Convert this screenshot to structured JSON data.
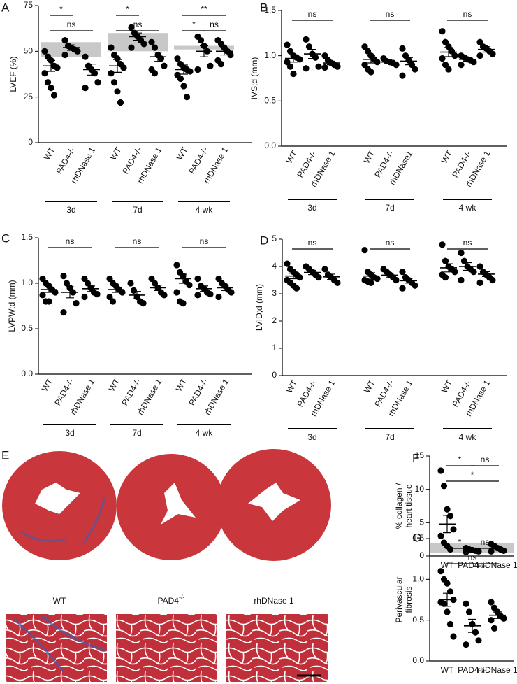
{
  "chart_data": [
    {
      "type": "dot",
      "panel": "A",
      "ylabel": "LVEF (%)",
      "ylim": [
        0,
        75
      ],
      "yticks": [
        0,
        25,
        50,
        75
      ],
      "categories": [
        "WT",
        "PAD4-/-",
        "rhDNase 1",
        "WT",
        "PAD4-/-",
        "rhDNase 1",
        "WT",
        "PAD4-/-",
        "rhDNase 1"
      ],
      "groups": [
        "3d",
        "7d",
        "4 wk"
      ],
      "points": [
        [
          50,
          47,
          45,
          42,
          41,
          38,
          33,
          30,
          26
        ],
        [
          56,
          53,
          52,
          51,
          50,
          48
        ],
        [
          47,
          42,
          40,
          38,
          33,
          30
        ],
        [
          52,
          48,
          46,
          43,
          41,
          38,
          33,
          28,
          22
        ],
        [
          63,
          60,
          58,
          56,
          54,
          52
        ],
        [
          55,
          52,
          48,
          46,
          42,
          40,
          38
        ],
        [
          46,
          43,
          41,
          40,
          39,
          37,
          35,
          31,
          25
        ],
        [
          58,
          56,
          53,
          50,
          42,
          40
        ],
        [
          56,
          54,
          52,
          50,
          48,
          45,
          43
        ]
      ],
      "means": [
        42,
        52,
        40,
        42,
        58,
        47,
        40,
        50,
        50
      ],
      "sems": [
        3,
        1.5,
        3,
        3.5,
        2,
        2.5,
        2.5,
        3,
        2
      ],
      "bands": [
        [
          47,
          55
        ],
        [
          50,
          60
        ],
        [
          51,
          53
        ]
      ],
      "comparisons": [
        {
          "label": "*",
          "pair": [
            0,
            1
          ]
        },
        {
          "label": "ns",
          "pair": [
            0,
            2
          ]
        },
        {
          "label": "*",
          "pair": [
            3,
            4
          ]
        },
        {
          "label": "ns",
          "pair": [
            3,
            5
          ]
        },
        {
          "label": "**",
          "pair": [
            6,
            8
          ]
        },
        {
          "label": "*",
          "pair": [
            6,
            7
          ]
        },
        {
          "label": "ns",
          "pair": [
            7,
            8
          ]
        }
      ]
    },
    {
      "type": "dot",
      "panel": "B",
      "ylabel": "IVS;d (mm)",
      "ylim": [
        0,
        1.5
      ],
      "yticks": [
        {
          "value": 0,
          "label": "0.0"
        },
        0.5,
        {
          "value": 1,
          "label": "1.0"
        },
        1.5
      ],
      "categories": [
        "WT",
        "PAD4-/-",
        "rhDNase 1",
        "WT",
        "PAD4-/-",
        "rhDNase1",
        "WT",
        "PAD4-/-",
        "rhDNase 1"
      ],
      "groups": [
        "3d",
        "7d",
        "4 wk"
      ],
      "points": [
        [
          1.12,
          1.05,
          1.0,
          0.98,
          0.96,
          0.93,
          0.88,
          0.8
        ],
        [
          1.18,
          1.1,
          1.02,
          0.98,
          0.88,
          0.86
        ],
        [
          1.0,
          0.95,
          0.92,
          0.9,
          0.88,
          0.87
        ],
        [
          1.1,
          1.05,
          1.0,
          0.96,
          0.93,
          0.9,
          0.85,
          0.82
        ],
        [
          0.97,
          0.94,
          0.93,
          0.92,
          0.9
        ],
        [
          1.08,
          1.0,
          0.95,
          0.9,
          0.85,
          0.78
        ],
        [
          1.27,
          1.15,
          1.1,
          1.05,
          1.0,
          0.97,
          0.9,
          0.85
        ],
        [
          1.0,
          0.98,
          0.96,
          0.95,
          0.93,
          0.9
        ],
        [
          1.15,
          1.1,
          1.08,
          1.05,
          1.02,
          1.0
        ]
      ],
      "means": [
        0.97,
        1.02,
        0.92,
        0.96,
        0.93,
        0.94,
        1.04,
        0.96,
        1.07
      ],
      "sems": [
        0.04,
        0.05,
        0.02,
        0.04,
        0.01,
        0.04,
        0.05,
        0.02,
        0.03
      ],
      "comparisons": [
        {
          "label": "ns",
          "pair": [
            0,
            2
          ]
        },
        {
          "label": "ns",
          "pair": [
            3,
            5
          ]
        },
        {
          "label": "ns",
          "pair": [
            6,
            8
          ]
        }
      ]
    },
    {
      "type": "dot",
      "panel": "C",
      "ylabel": "LVPW;d (mm)",
      "ylim": [
        0,
        1.5
      ],
      "yticks": [
        {
          "value": 0,
          "label": "0.0"
        },
        0.5,
        {
          "value": 1,
          "label": "1.0"
        },
        1.5
      ],
      "categories": [
        "WT",
        "PAD4-/-",
        "rhDNase 1",
        "WT",
        "PAD4-/-",
        "rhDNase 1",
        "WT",
        "PAD4-/-",
        "rhDNase 1"
      ],
      "groups": [
        "3d",
        "7d",
        "4 wk"
      ],
      "points": [
        [
          1.05,
          1.0,
          0.97,
          0.93,
          0.9,
          0.87,
          0.8,
          0.8
        ],
        [
          1.08,
          1.0,
          0.95,
          0.9,
          0.78,
          0.68
        ],
        [
          1.05,
          1.0,
          0.95,
          0.9,
          0.88,
          0.85
        ],
        [
          1.05,
          1.0,
          0.97,
          0.93,
          0.9,
          0.85,
          0.8
        ],
        [
          1.0,
          0.92,
          0.85,
          0.8,
          0.78
        ],
        [
          1.05,
          1.0,
          0.95,
          0.9,
          0.87
        ],
        [
          1.2,
          1.12,
          1.08,
          1.02,
          0.98,
          0.9,
          0.8,
          0.78
        ],
        [
          1.05,
          0.97,
          0.94,
          0.9,
          0.88,
          0.87
        ],
        [
          1.05,
          1.0,
          0.97,
          0.93,
          0.9,
          0.85
        ]
      ],
      "means": [
        0.93,
        0.9,
        0.94,
        0.93,
        0.87,
        0.95,
        1.05,
        0.94,
        0.95
      ],
      "sems": [
        0.03,
        0.06,
        0.03,
        0.03,
        0.04,
        0.03,
        0.05,
        0.03,
        0.03
      ],
      "comparisons": [
        {
          "label": "ns",
          "pair": [
            0,
            2
          ]
        },
        {
          "label": "ns",
          "pair": [
            3,
            5
          ]
        },
        {
          "label": "ns",
          "pair": [
            6,
            8
          ]
        }
      ]
    },
    {
      "type": "dot",
      "panel": "D",
      "ylabel": "LVID;d (mm)",
      "ylim": [
        0,
        5
      ],
      "yticks": [
        0,
        1,
        2,
        3,
        4,
        5
      ],
      "categories": [
        "WT",
        "PAD4-/-",
        "rhDNase 1",
        "WT",
        "PAD4-/-",
        "rhDNase 1",
        "WT",
        "PAD4-/-",
        "rhDNase 1"
      ],
      "groups": [
        "3d",
        "7d",
        "4 wk"
      ],
      "points": [
        [
          4.1,
          3.9,
          3.8,
          3.7,
          3.6,
          3.5,
          3.4,
          3.3,
          3.2
        ],
        [
          4.0,
          3.9,
          3.8,
          3.7,
          3.6
        ],
        [
          3.9,
          3.7,
          3.6,
          3.5,
          3.4
        ],
        [
          4.6,
          3.8,
          3.7,
          3.6,
          3.55,
          3.5,
          3.45,
          3.4
        ],
        [
          3.9,
          3.8,
          3.7,
          3.6,
          3.5
        ],
        [
          3.8,
          3.6,
          3.5,
          3.4,
          3.3,
          3.2
        ],
        [
          4.8,
          4.2,
          4.0,
          3.9,
          3.8,
          3.7,
          3.6
        ],
        [
          4.5,
          4.2,
          4.0,
          3.9,
          3.8,
          3.5
        ],
        [
          4.0,
          3.8,
          3.7,
          3.6,
          3.5,
          3.4
        ]
      ],
      "means": [
        3.65,
        3.78,
        3.62,
        3.65,
        3.68,
        3.48,
        3.95,
        4.0,
        3.72
      ],
      "sems": [
        0.1,
        0.08,
        0.1,
        0.12,
        0.07,
        0.09,
        0.15,
        0.14,
        0.09
      ],
      "comparisons": [
        {
          "label": "ns",
          "pair": [
            0,
            2
          ]
        },
        {
          "label": "ns",
          "pair": [
            3,
            5
          ]
        },
        {
          "label": "ns",
          "pair": [
            6,
            8
          ]
        }
      ]
    },
    {
      "type": "dot",
      "panel": "F",
      "ylabel": [
        "% collagen /",
        "heart tissue"
      ],
      "ylim": [
        0,
        15
      ],
      "yticks": [
        0,
        5,
        10,
        15
      ],
      "categories": [
        "WT",
        "PAD4-/-",
        "rhDNase 1"
      ],
      "points": [
        [
          12.8,
          10.5,
          7,
          6,
          4,
          3,
          2,
          1.5,
          1
        ],
        [
          1.2,
          1,
          0.9,
          0.8,
          0.7,
          0.6
        ],
        [
          1.8,
          1.5,
          1.2,
          1.0,
          0.8,
          0.7
        ]
      ],
      "means": [
        4.8,
        0.9,
        1.1
      ],
      "sems": [
        1.3,
        0.2,
        0.2
      ],
      "bands": [
        [
          0.5,
          2
        ]
      ],
      "comparisons": [
        {
          "label": "*",
          "pair": [
            0,
            1
          ]
        },
        {
          "label": "*",
          "pair": [
            0,
            2
          ]
        },
        {
          "label": "ns",
          "pair": [
            1,
            2
          ]
        }
      ]
    },
    {
      "type": "dot",
      "panel": "G",
      "ylabel": [
        "Perivascular",
        "fibrosis"
      ],
      "ylim": [
        0,
        1.5
      ],
      "yticks": [
        {
          "value": 0,
          "label": "0.0"
        },
        0.5,
        {
          "value": 1,
          "label": "1.0"
        },
        1.5
      ],
      "categories": [
        "WT",
        "PAD4-/-",
        "rhDNase 1"
      ],
      "points": [
        [
          1.1,
          1.0,
          0.95,
          0.85,
          0.75,
          0.72,
          0.7,
          0.6,
          0.45,
          0.3
        ],
        [
          0.7,
          0.6,
          0.45,
          0.35,
          0.25,
          0.2
        ],
        [
          0.72,
          0.65,
          0.6,
          0.55,
          0.52,
          0.5,
          0.4
        ]
      ],
      "means": [
        0.75,
        0.43,
        0.56
      ],
      "sems": [
        0.08,
        0.08,
        0.04
      ],
      "comparisons": [
        {
          "label": "*",
          "pair": [
            0,
            1
          ]
        },
        {
          "label": "ns",
          "pair": [
            0,
            2
          ]
        },
        {
          "label": "ns",
          "pair": [
            1,
            2
          ]
        }
      ]
    }
  ],
  "panel_e": {
    "panel": "E",
    "images": [
      {
        "label": "WT"
      },
      {
        "label": "PAD4",
        "superscript": "-/-"
      },
      {
        "label": "rhDNase 1"
      }
    ]
  }
}
